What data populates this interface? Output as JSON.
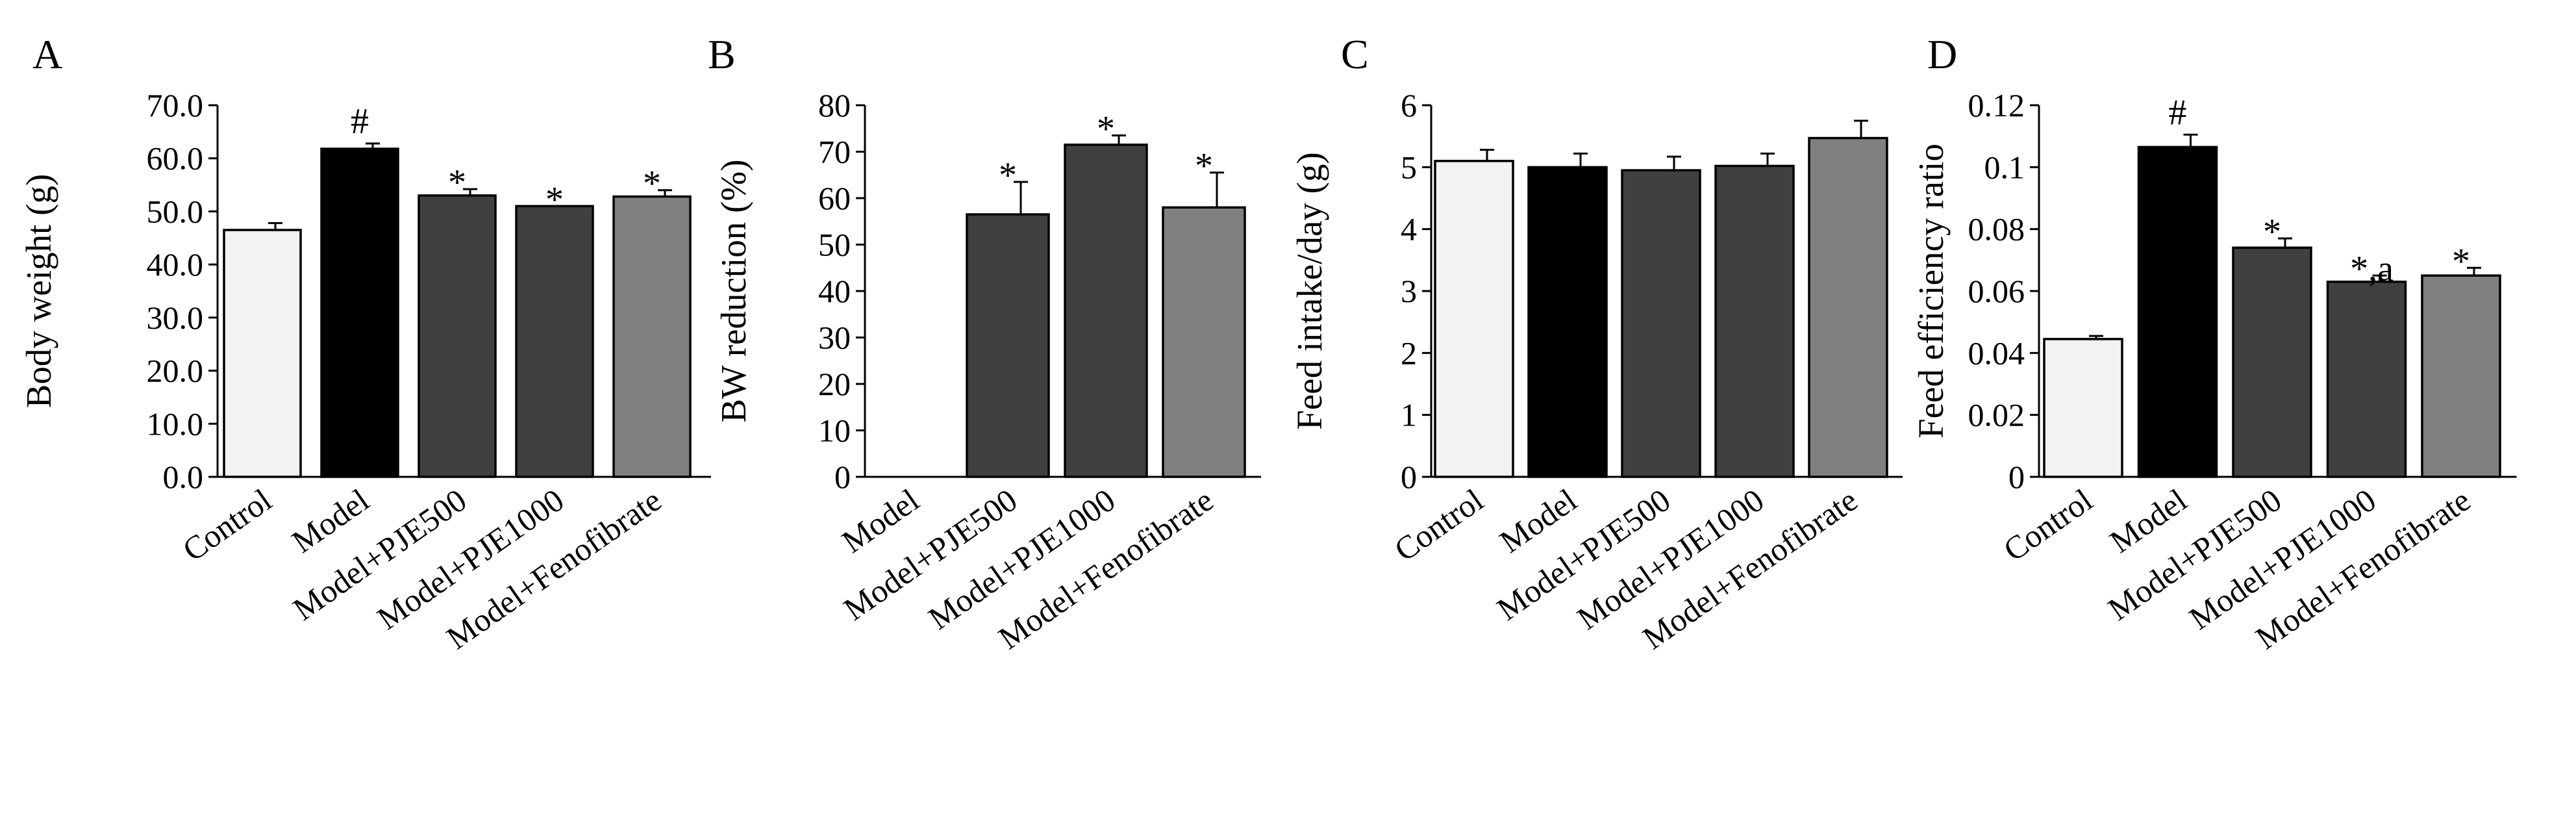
{
  "chart_data": [
    {
      "type": "bar",
      "panel": "A",
      "ylabel": "Body weight (g)",
      "ylim": [
        0,
        70
      ],
      "yticks": [
        "0.0",
        "10.0",
        "20.0",
        "30.0",
        "40.0",
        "50.0",
        "60.0",
        "70.0"
      ],
      "categories": [
        "Control",
        "Model",
        "Model+PJE500",
        "Model+PJE1000",
        "Model+Fenofibrate"
      ],
      "values": [
        46.5,
        61.8,
        53.0,
        51.0,
        52.8
      ],
      "errors": [
        1.3,
        1.0,
        1.2,
        0,
        1.2
      ],
      "annotations": [
        "",
        "#",
        "*",
        "*",
        "*"
      ],
      "colors": [
        "#f2f2f2",
        "#000000",
        "#404040",
        "#404040",
        "#808080"
      ]
    },
    {
      "type": "bar",
      "panel": "B",
      "ylabel": "BW reduction (%)",
      "ylim": [
        0,
        80
      ],
      "yticks": [
        "0",
        "10",
        "20",
        "30",
        "40",
        "50",
        "60",
        "70",
        "80"
      ],
      "categories": [
        "Model",
        "Model+PJE500",
        "Model+PJE1000",
        "Model+Fenofibrate"
      ],
      "values": [
        0,
        56.5,
        71.5,
        58.0
      ],
      "errors": [
        0,
        7.0,
        2.0,
        7.5
      ],
      "annotations": [
        "",
        "*",
        "*",
        "*"
      ],
      "colors": [
        "#000000",
        "#404040",
        "#404040",
        "#808080"
      ]
    },
    {
      "type": "bar",
      "panel": "C",
      "ylabel": "Feed intake/day (g)",
      "ylim": [
        0,
        6
      ],
      "yticks": [
        "0",
        "1",
        "2",
        "3",
        "4",
        "5",
        "6"
      ],
      "categories": [
        "Control",
        "Model",
        "Model+PJE500",
        "Model+PJE1000",
        "Model+Fenofibrate"
      ],
      "values": [
        5.1,
        5.0,
        4.95,
        5.02,
        5.47
      ],
      "errors": [
        0.18,
        0.22,
        0.22,
        0.2,
        0.28
      ],
      "annotations": [
        "",
        "",
        "",
        "",
        ""
      ],
      "colors": [
        "#f2f2f2",
        "#000000",
        "#404040",
        "#404040",
        "#808080"
      ]
    },
    {
      "type": "bar",
      "panel": "D",
      "ylabel": "Feed efficiency ratio",
      "ylim": [
        0,
        0.12
      ],
      "yticks": [
        "0",
        "0.02",
        "0.04",
        "0.06",
        "0.08",
        "0.1",
        "0.12"
      ],
      "categories": [
        "Control",
        "Model",
        "Model+PJE500",
        "Model+PJE1000",
        "Model+Fenofibrate"
      ],
      "values": [
        0.0445,
        0.1065,
        0.074,
        0.063,
        0.065
      ],
      "errors": [
        0.001,
        0.004,
        0.003,
        0.002,
        0.0025
      ],
      "annotations": [
        "",
        "#",
        "*",
        "*,a",
        "*"
      ],
      "colors": [
        "#f2f2f2",
        "#000000",
        "#404040",
        "#404040",
        "#808080"
      ]
    }
  ]
}
